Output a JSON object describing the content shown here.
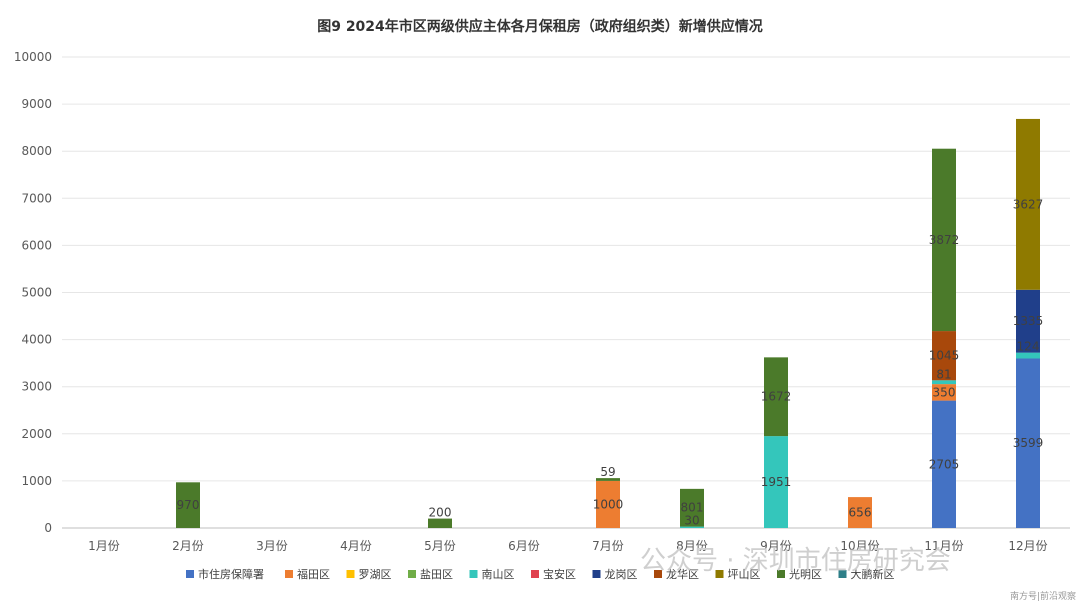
{
  "chart_data": {
    "type": "bar",
    "stacked": true,
    "title": "图9 2024年市区两级供应主体各月保租房（政府组织类）新增供应情况",
    "xlabel": "",
    "ylabel": "",
    "ylim": [
      0,
      10000
    ],
    "yticks": [
      "0",
      "1000",
      "2000",
      "3000",
      "4000",
      "5000",
      "6000",
      "7000",
      "8000",
      "9000",
      "10000"
    ],
    "grid": true,
    "legend_position": "bottom",
    "categories": [
      "1月份",
      "2月份",
      "3月份",
      "4月份",
      "5月份",
      "6月份",
      "7月份",
      "8月份",
      "9月份",
      "10月份",
      "11月份",
      "12月份"
    ],
    "series": [
      {
        "name": "市住房保障署",
        "color": "#4472C4",
        "values": [
          0,
          0,
          0,
          0,
          0,
          0,
          0,
          0,
          0,
          0,
          2705,
          3599
        ]
      },
      {
        "name": "福田区",
        "color": "#ED7D31",
        "values": [
          0,
          0,
          0,
          0,
          0,
          0,
          1000,
          0,
          0,
          656,
          350,
          0
        ]
      },
      {
        "name": "罗湖区",
        "color": "#FFC000",
        "values": [
          0,
          0,
          0,
          0,
          0,
          0,
          0,
          0,
          0,
          0,
          0,
          0
        ]
      },
      {
        "name": "盐田区",
        "color": "#70AD47",
        "values": [
          0,
          0,
          0,
          0,
          0,
          0,
          0,
          0,
          0,
          0,
          0,
          0
        ]
      },
      {
        "name": "南山区",
        "color": "#34C6BB",
        "values": [
          0,
          0,
          0,
          0,
          0,
          0,
          0,
          30,
          1951,
          0,
          81,
          124
        ]
      },
      {
        "name": "宝安区",
        "color": "#E0414F",
        "values": [
          0,
          0,
          0,
          0,
          0,
          0,
          0,
          0,
          0,
          0,
          0,
          0
        ]
      },
      {
        "name": "龙岗区",
        "color": "#203F8A",
        "values": [
          0,
          0,
          0,
          0,
          0,
          0,
          0,
          0,
          0,
          0,
          0,
          1335
        ]
      },
      {
        "name": "龙华区",
        "color": "#A8480B",
        "values": [
          0,
          0,
          0,
          0,
          0,
          0,
          0,
          0,
          0,
          0,
          1045,
          0
        ]
      },
      {
        "name": "坪山区",
        "color": "#8F7A00",
        "values": [
          0,
          0,
          0,
          0,
          0,
          0,
          0,
          0,
          0,
          0,
          0,
          3627
        ]
      },
      {
        "name": "光明区",
        "color": "#4B7A2A",
        "values": [
          0,
          970,
          0,
          0,
          200,
          0,
          59,
          801,
          1672,
          0,
          3872,
          0
        ]
      },
      {
        "name": "大鹏新区",
        "color": "#2E7F88",
        "values": [
          0,
          0,
          0,
          0,
          0,
          0,
          0,
          0,
          0,
          0,
          0,
          0
        ]
      }
    ],
    "data_labels": [
      {
        "category": "2月份",
        "series": "光明区",
        "text": "970"
      },
      {
        "category": "5月份",
        "series": "光明区",
        "text": "200"
      },
      {
        "category": "7月份",
        "series": "福田区",
        "text": "1000"
      },
      {
        "category": "7月份",
        "series": "光明区",
        "text": "59"
      },
      {
        "category": "8月份",
        "series": "南山区",
        "text": "30"
      },
      {
        "category": "8月份",
        "series": "光明区",
        "text": "801"
      },
      {
        "category": "9月份",
        "series": "南山区",
        "text": "1951"
      },
      {
        "category": "9月份",
        "series": "光明区",
        "text": "1672"
      },
      {
        "category": "10月份",
        "series": "福田区",
        "text": "656"
      },
      {
        "category": "11月份",
        "series": "市住房保障署",
        "text": "2705"
      },
      {
        "category": "11月份",
        "series": "福田区",
        "text": "350"
      },
      {
        "category": "11月份",
        "series": "南山区",
        "text": "81"
      },
      {
        "category": "11月份",
        "series": "龙华区",
        "text": "1045"
      },
      {
        "category": "11月份",
        "series": "光明区",
        "text": "3872"
      },
      {
        "category": "12月份",
        "series": "市住房保障署",
        "text": "3599"
      },
      {
        "category": "12月份",
        "series": "南山区",
        "text": "124"
      },
      {
        "category": "12月份",
        "series": "龙岗区",
        "text": "1335"
      },
      {
        "category": "12月份",
        "series": "坪山区",
        "text": "3627"
      }
    ]
  },
  "watermark": "公众号 · 深圳市住房研究会",
  "corner_tag": "南方号|前沿观察"
}
